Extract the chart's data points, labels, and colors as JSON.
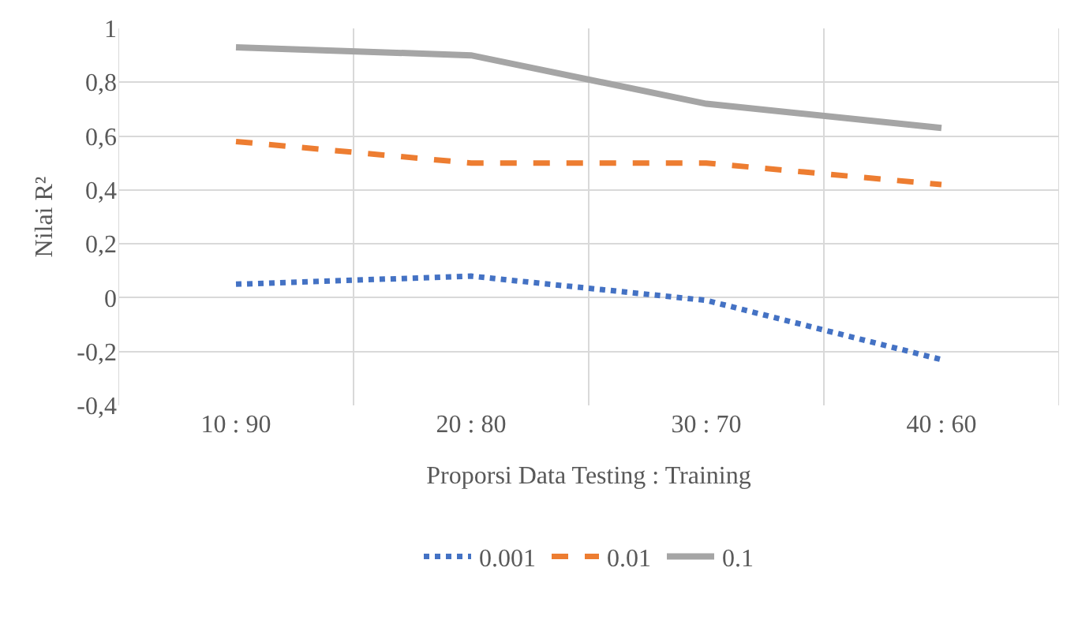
{
  "chart_data": {
    "type": "line",
    "xlabel": "Proporsi Data Testing : Training",
    "ylabel": "Nilai R²",
    "categories": [
      "10 : 90",
      "20 : 80",
      "30 : 70",
      "40 : 60"
    ],
    "series": [
      {
        "name": "0.001",
        "color": "#4472c4",
        "values": [
          0.05,
          0.08,
          -0.01,
          -0.23
        ],
        "line_style": "dotted"
      },
      {
        "name": "0.01",
        "color": "#ed7d31",
        "values": [
          0.58,
          0.5,
          0.5,
          0.42
        ],
        "line_style": "dashed"
      },
      {
        "name": "0.1",
        "color": "#a5a5a5",
        "values": [
          0.93,
          0.9,
          0.72,
          0.63
        ],
        "line_style": "solid"
      }
    ],
    "ylim": [
      -0.4,
      1
    ],
    "yticks": [
      {
        "value": -0.4,
        "label": "-0,4"
      },
      {
        "value": -0.2,
        "label": "-0,2"
      },
      0,
      {
        "value": 0.2,
        "label": "0,2"
      },
      {
        "value": 0.4,
        "label": "0,4"
      },
      {
        "value": 0.6,
        "label": "0,6"
      },
      {
        "value": 0.8,
        "label": "0,8"
      },
      1
    ],
    "grid": true,
    "legend": "bottom",
    "marker": "none"
  }
}
